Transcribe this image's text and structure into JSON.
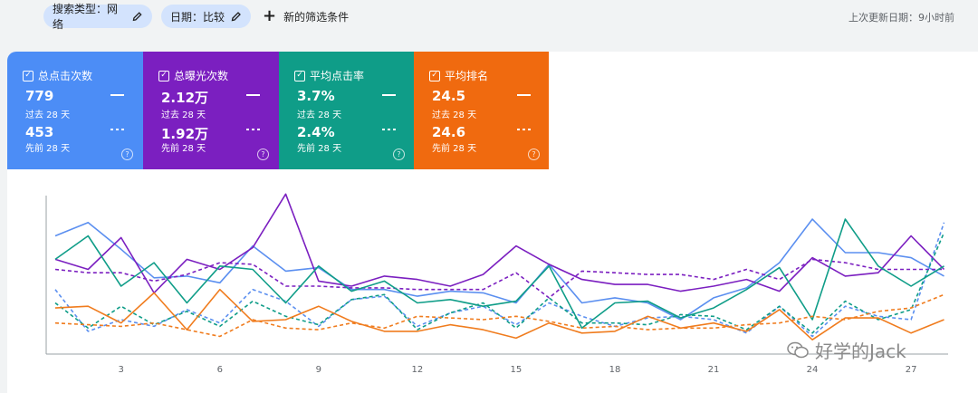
{
  "filters": {
    "search_type": "搜索类型：网络",
    "date": "日期：比较",
    "add_filter": "新的筛选条件"
  },
  "last_updated": "上次更新日期：9小时前",
  "cards": [
    {
      "title": "总点击次数",
      "value1": "779",
      "period1": "过去 28 天",
      "value2": "453",
      "period2": "先前 28 天",
      "color": "#4c8df6"
    },
    {
      "title": "总曝光次数",
      "value1": "2.12万",
      "period1": "过去 28 天",
      "value2": "1.92万",
      "period2": "先前 28 天",
      "color": "#7b1fc0"
    },
    {
      "title": "平均点击率",
      "value1": "3.7%",
      "period1": "过去 28 天",
      "value2": "2.4%",
      "period2": "先前 28 天",
      "color": "#0f9d88"
    },
    {
      "title": "平均排名",
      "value1": "24.5",
      "period1": "过去 28 天",
      "value2": "24.6",
      "period2": "先前 28 天",
      "color": "#f06a0f"
    }
  ],
  "watermark": "好学的Jack",
  "chart_data": {
    "type": "line",
    "x": [
      1,
      2,
      3,
      4,
      5,
      6,
      7,
      8,
      9,
      10,
      11,
      12,
      13,
      14,
      15,
      16,
      17,
      18,
      19,
      20,
      21,
      22,
      23,
      24,
      25,
      26,
      27,
      28
    ],
    "xticks": [
      3,
      6,
      9,
      12,
      15,
      18,
      21,
      24,
      27
    ],
    "ylim": [
      0,
      100
    ],
    "series": [
      {
        "name": "总点击次数 过去 28 天",
        "color": "#5b8ff0",
        "style": "solid",
        "values": [
          70,
          78,
          62,
          45,
          46,
          42,
          64,
          49,
          51,
          38,
          38,
          34,
          37,
          36,
          30,
          53,
          30,
          33,
          30,
          20,
          33,
          39,
          54,
          80,
          60,
          60,
          57,
          46
        ]
      },
      {
        "name": "总点击次数 先前 28 天",
        "color": "#5b8ff0",
        "style": "dashed",
        "values": [
          38,
          13,
          20,
          16,
          26,
          18,
          38,
          31,
          16,
          32,
          34,
          16,
          24,
          28,
          17,
          30,
          22,
          16,
          21,
          22,
          20,
          12,
          28,
          10,
          28,
          22,
          20,
          78
        ]
      },
      {
        "name": "总曝光次数 过去 28 天",
        "color": "#7b1fc0",
        "style": "solid",
        "values": [
          56,
          50,
          69,
          36,
          56,
          50,
          63,
          95,
          43,
          40,
          46,
          44,
          40,
          47,
          64,
          53,
          44,
          41,
          41,
          37,
          40,
          44,
          37,
          57,
          46,
          48,
          70,
          50
        ]
      },
      {
        "name": "总曝光次数 先前 28 天",
        "color": "#7b1fc0",
        "style": "dashed",
        "values": [
          50,
          48,
          48,
          43,
          47,
          54,
          53,
          40,
          40,
          39,
          39,
          38,
          38,
          38,
          48,
          33,
          49,
          48,
          47,
          47,
          44,
          50,
          44,
          56,
          54,
          50,
          50,
          50
        ]
      },
      {
        "name": "平均点击率 过去 28 天",
        "color": "#0f9d88",
        "style": "solid",
        "values": [
          56,
          70,
          40,
          54,
          30,
          52,
          50,
          30,
          52,
          37,
          43,
          30,
          32,
          28,
          31,
          52,
          15,
          30,
          31,
          21,
          27,
          38,
          51,
          20,
          80,
          52,
          40,
          52
        ]
      },
      {
        "name": "平均点击率 先前 28 天",
        "color": "#0f9d88",
        "style": "dashed",
        "values": [
          30,
          15,
          28,
          17,
          25,
          16,
          31,
          22,
          17,
          32,
          35,
          14,
          24,
          30,
          15,
          33,
          18,
          18,
          17,
          23,
          22,
          14,
          28,
          12,
          31,
          20,
          26,
          72
        ]
      },
      {
        "name": "平均排名 过去 28 天",
        "color": "#f07c1e",
        "style": "solid",
        "values": [
          27,
          28,
          18,
          36,
          14,
          38,
          19,
          20,
          28,
          19,
          13,
          13,
          17,
          14,
          9,
          18,
          12,
          13,
          22,
          15,
          18,
          13,
          26,
          8,
          21,
          21,
          12,
          20
        ]
      },
      {
        "name": "平均排名 先前 28 天",
        "color": "#f07c1e",
        "style": "dashed",
        "values": [
          18,
          17,
          16,
          18,
          14,
          10,
          20,
          15,
          14,
          18,
          15,
          22,
          21,
          20,
          22,
          19,
          15,
          16,
          14,
          15,
          15,
          17,
          18,
          22,
          20,
          25,
          27,
          35
        ]
      }
    ]
  }
}
